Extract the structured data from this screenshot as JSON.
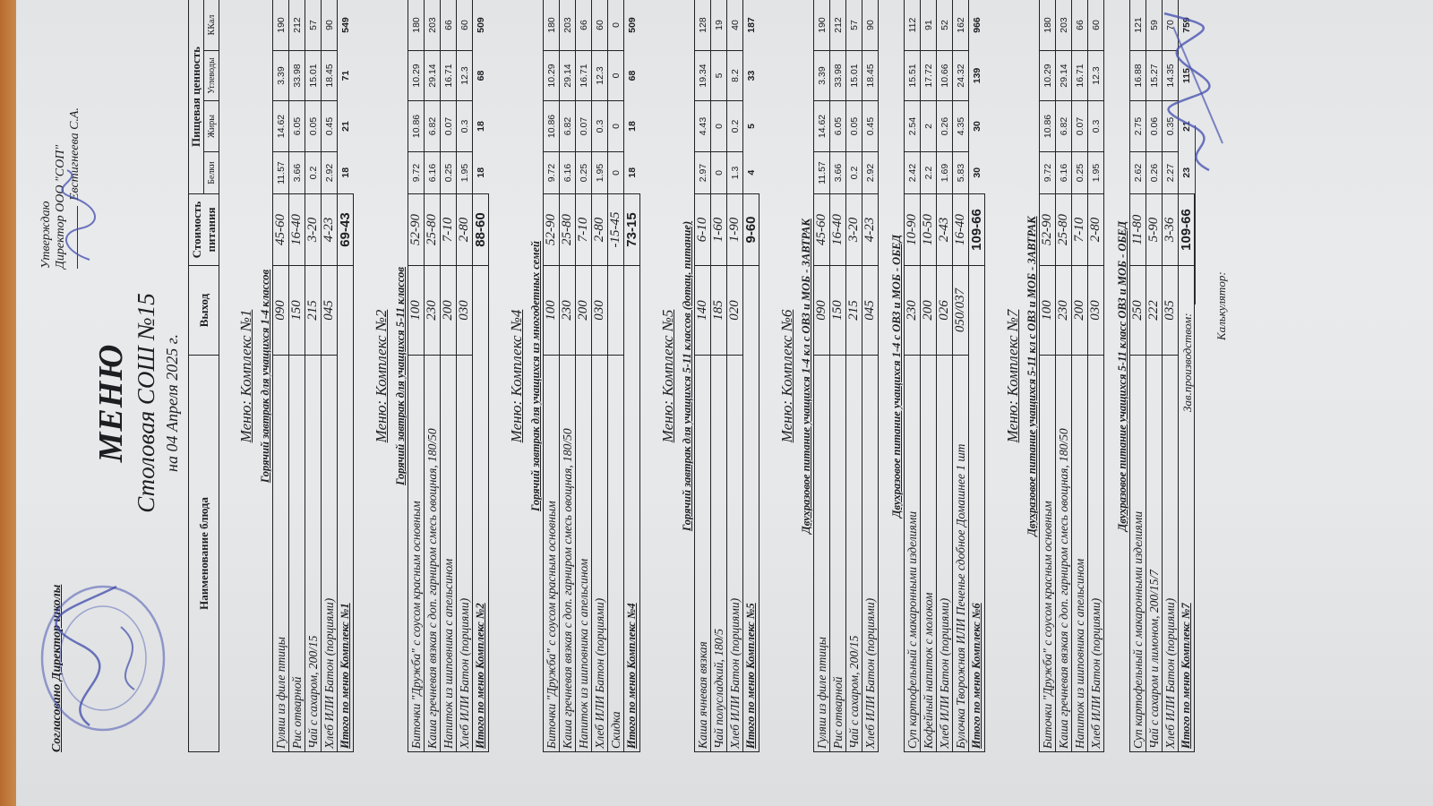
{
  "approval": {
    "line1": "Утверждаю",
    "line2": "Директор ООО \"СОП\"",
    "name": "Евстигнеева С.А."
  },
  "agreed": "Согласовано Директор школы",
  "title": "МЕНЮ",
  "subtitle": "Столовая СОШ №15",
  "date": "на 04 Апреля 2025 г.",
  "header": {
    "name": "Наименование блюда",
    "output": "Выход",
    "cost": "Стоимость питания",
    "nutrition": "Пищевая ценность",
    "protein": "Белки",
    "fat": "Жиры",
    "carbs": "Углеводы",
    "kcal": "ККал"
  },
  "complexes": [
    {
      "title": "Меню: Комплекс №1",
      "sections": [
        {
          "subtitle": "Горячий завтрак для учащихся 1-4 классов",
          "rows": [
            [
              "Гуляш из филе птицы",
              "090",
              "45-60",
              "11.57",
              "14.62",
              "3.39",
              "190"
            ],
            [
              "Рис отварной",
              "150",
              "16-40",
              "3.66",
              "6.05",
              "33.98",
              "212"
            ],
            [
              "Чай с сахаром, 200/15",
              "215",
              "3-20",
              "0.2",
              "0.05",
              "15.01",
              "57"
            ],
            [
              "Хлеб ИЛИ Батон (порциями)",
              "045",
              "4-23",
              "2.92",
              "0.45",
              "18.45",
              "90"
            ]
          ]
        }
      ],
      "total": [
        "Итого по меню Комплекс №1",
        "69-43",
        "18",
        "21",
        "71",
        "549"
      ]
    },
    {
      "title": "Меню: Комплекс №2",
      "sections": [
        {
          "subtitle": "Горячий завтрак для учащихся 5-11 классов",
          "rows": [
            [
              "Биточки  \"Дружба\" с соусом красным основным",
              "100",
              "52-90",
              "9.72",
              "10.86",
              "10.29",
              "180"
            ],
            [
              "Каша гречневая вязкая с доп. гарниром смесь овощная, 180/50",
              "230",
              "25-80",
              "6.16",
              "6.82",
              "29.14",
              "203"
            ],
            [
              "Напиток из шиповника с апельсином",
              "200",
              "7-10",
              "0.25",
              "0.07",
              "16.71",
              "66"
            ],
            [
              "Хлеб ИЛИ Батон (порциями)",
              "030",
              "2-80",
              "1.95",
              "0.3",
              "12.3",
              "60"
            ]
          ]
        }
      ],
      "total": [
        "Итого по меню Комплекс №2",
        "88-60",
        "18",
        "18",
        "68",
        "509"
      ]
    },
    {
      "title": "Меню: Комплекс №4",
      "sections": [
        {
          "subtitle": "Горячий завтрак для учащихся из многодетных семей",
          "rows": [
            [
              "Биточки  \"Дружба\" с соусом красным основным",
              "100",
              "52-90",
              "9.72",
              "10.86",
              "10.29",
              "180"
            ],
            [
              "Каша гречневая вязкая с доп. гарниром смесь овощная, 180/50",
              "230",
              "25-80",
              "6.16",
              "6.82",
              "29.14",
              "203"
            ],
            [
              "Напиток из шиповника с апельсином",
              "200",
              "7-10",
              "0.25",
              "0.07",
              "16.71",
              "66"
            ],
            [
              "Хлеб ИЛИ Батон (порциями)",
              "030",
              "2-80",
              "1.95",
              "0.3",
              "12.3",
              "60"
            ],
            [
              "Скидка",
              "",
              "-15-45",
              "0",
              "0",
              "0",
              "0"
            ]
          ]
        }
      ],
      "total": [
        "Итого по меню Комплекс №4",
        "73-15",
        "18",
        "18",
        "68",
        "509"
      ]
    },
    {
      "title": "Меню: Комплекс №5",
      "sections": [
        {
          "subtitle": "Горячий завтрак для учащихся 5-11 классов (дотац. питание)",
          "rows": [
            [
              "Каша ячневая вязкая",
              "140",
              "6-10",
              "2.97",
              "4.43",
              "19.34",
              "128"
            ],
            [
              "Чай полусладкий, 180/5",
              "185",
              "1-60",
              "0",
              "0",
              "5",
              "19"
            ],
            [
              "Хлеб ИЛИ Батон (порциями)",
              "020",
              "1-90",
              "1.3",
              "0.2",
              "8.2",
              "40"
            ]
          ]
        }
      ],
      "total": [
        "Итого по меню Комплекс №5",
        "9-60",
        "4",
        "5",
        "33",
        "187"
      ]
    },
    {
      "title": "Меню: Комплекс №6",
      "sections": [
        {
          "subtitle": "Двухразовое питание учащихся 1-4 кл с ОВЗ и МОБ - ЗАВТРАК",
          "rows": [
            [
              "Гуляш из филе птицы",
              "090",
              "45-60",
              "11.57",
              "14.62",
              "3.39",
              "190"
            ],
            [
              "Рис отварной",
              "150",
              "16-40",
              "3.66",
              "6.05",
              "33.98",
              "212"
            ],
            [
              "Чай с сахаром, 200/15",
              "215",
              "3-20",
              "0.2",
              "0.05",
              "15.01",
              "57"
            ],
            [
              "Хлеб ИЛИ Батон (порциями)",
              "045",
              "4-23",
              "2.92",
              "0.45",
              "18.45",
              "90"
            ]
          ]
        },
        {
          "subtitle": "Двухразовое питание учащихся 1-4 с ОВЗ и МОБ - ОБЕД",
          "rows": [
            [
              "Суп картофельный с макаронными изделиями",
              "230",
              "10-90",
              "2.42",
              "2.54",
              "15.51",
              "112"
            ],
            [
              "Кофейный напиток с молоком",
              "200",
              "10-50",
              "2.2",
              "2",
              "17.72",
              "91"
            ],
            [
              "Хлеб ИЛИ Батон (порциями)",
              "026",
              "2-43",
              "1.69",
              "0.26",
              "10.66",
              "52"
            ],
            [
              "Булочка Творожная ИЛИ Печенье сдобное Домашнее 1 шт",
              "050/037",
              "16-40",
              "5.83",
              "4.35",
              "24.32",
              "162"
            ]
          ]
        }
      ],
      "total": [
        "Итого по меню Комплекс №6",
        "109-66",
        "30",
        "30",
        "139",
        "966"
      ]
    },
    {
      "title": "Меню: Комплекс №7",
      "sections": [
        {
          "subtitle": "Двухразовое питание учащихся 5-11 кл с  ОВЗ и МОБ - ЗАВТРАК",
          "rows": [
            [
              "Биточки  \"Дружба\" с соусом красным основным",
              "100",
              "52-90",
              "9.72",
              "10.86",
              "10.29",
              "180"
            ],
            [
              "Каша гречневая вязкая с доп. гарниром смесь овощная, 180/50",
              "230",
              "25-80",
              "6.16",
              "6.82",
              "29.14",
              "203"
            ],
            [
              "Напиток из шиповника с апельсином",
              "200",
              "7-10",
              "0.25",
              "0.07",
              "16.71",
              "66"
            ],
            [
              "Хлеб ИЛИ Батон (порциями)",
              "030",
              "2-80",
              "1.95",
              "0.3",
              "12.3",
              "60"
            ]
          ]
        },
        {
          "subtitle": "Двухразовое питание учащихся 5-11 класс ОВЗ и МОБ - ОБЕД",
          "rows": [
            [
              "Суп картофельный с макаронными изделиями",
              "250",
              "11-80",
              "2.62",
              "2.75",
              "16.88",
              "121"
            ],
            [
              "Чай с сахаром и лимоном, 200/15/7",
              "222",
              "5-90",
              "0.26",
              "0.06",
              "15.27",
              "59"
            ],
            [
              "Хлеб ИЛИ Батон (порциями)",
              "035",
              "3-36",
              "2.27",
              "0.35",
              "14.35",
              "70"
            ]
          ]
        }
      ],
      "total": [
        "Итого по меню Комплекс №7",
        "109-66",
        "23",
        "21",
        "115",
        "759"
      ]
    }
  ],
  "footer": {
    "production": "Зав.производством:",
    "calculator": "Калькулятор:"
  },
  "colors": {
    "ink_stamp": "#4a55b0",
    "paper": "#e6e8ea",
    "table_border": "#222222",
    "background_strip": "#c07a3c"
  }
}
